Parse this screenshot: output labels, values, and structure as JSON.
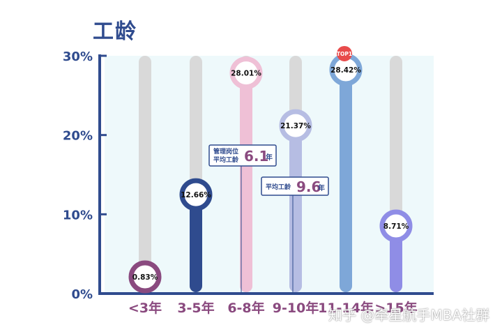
{
  "page": {
    "watermark": "知乎 @牵星航手MBA社群"
  },
  "chart_data": {
    "type": "bar",
    "title": "工龄",
    "xlabel": "",
    "ylabel": "",
    "ylim": [
      0,
      30
    ],
    "yticks": [
      "0%",
      "10%",
      "20%",
      "30%"
    ],
    "categories": [
      "<3年",
      "3-5年",
      "6-8年",
      "9-10年",
      "11-14年",
      ">15年"
    ],
    "values": [
      0.83,
      12.66,
      28.01,
      21.37,
      28.42,
      8.71
    ],
    "value_labels": [
      "0.83%",
      "12.66%",
      "28.01%",
      "21.37%",
      "28.42%",
      "8.71%"
    ],
    "colors": [
      "#8a4a7f",
      "#2f4b8e",
      "#efc0d6",
      "#b6bde3",
      "#7ea7d8",
      "#8f8de6"
    ],
    "track_color": "#d9d9d9",
    "plot_bg": "#eef9fb",
    "axis_color": "#2f4b8e",
    "top_badge": {
      "text": "TOP1",
      "category": "11-14年",
      "color": "#e84b4b"
    },
    "annotations": [
      {
        "category": "6-8年",
        "line1": "管理岗位",
        "line2": "平均工龄",
        "value": "6.1",
        "unit": "年",
        "value_color": "#8a4a7f"
      },
      {
        "category": "9-10年",
        "line1": "平均工龄",
        "line2": "",
        "value": "9.6",
        "unit": "年",
        "value_color": "#8a4a7f"
      }
    ],
    "grid": false
  }
}
